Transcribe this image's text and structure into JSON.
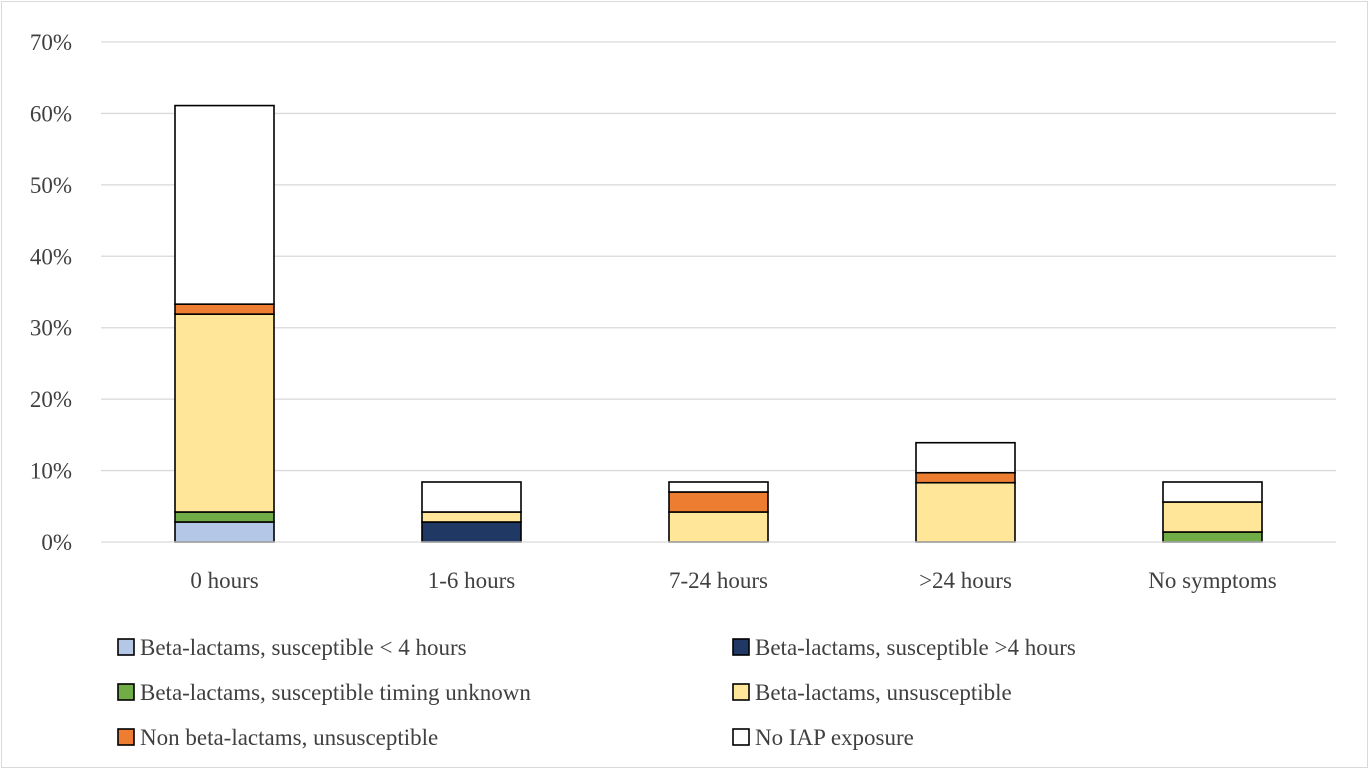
{
  "chart_data": {
    "type": "bar",
    "stacked": true,
    "title": "",
    "xlabel": "",
    "ylabel": "",
    "categories": [
      "0 hours",
      "1-6 hours",
      "7-24 hours",
      ">24 hours",
      "No symptoms"
    ],
    "ylim": [
      0,
      70
    ],
    "yticks": [
      0,
      10,
      20,
      30,
      40,
      50,
      60,
      70
    ],
    "ytick_labels": [
      "0%",
      "10%",
      "20%",
      "30%",
      "40%",
      "50%",
      "60%",
      "70%"
    ],
    "grid": true,
    "legend_position": "bottom",
    "series": [
      {
        "name": "Beta-lactams, susceptible < 4 hours",
        "color": "#b4c7e7",
        "values": [
          2.8,
          0,
          0,
          0,
          0
        ]
      },
      {
        "name": "Beta-lactams, susceptible >4 hours",
        "color": "#203864",
        "values": [
          0,
          2.8,
          0,
          0,
          0
        ]
      },
      {
        "name": "Beta-lactams, susceptible timing unknown",
        "color": "#70ad47",
        "values": [
          1.4,
          0,
          0,
          0,
          1.4
        ]
      },
      {
        "name": "Beta-lactams, unsusceptible",
        "color": "#ffe699",
        "values": [
          27.7,
          1.4,
          4.2,
          8.3,
          4.2
        ]
      },
      {
        "name": "Non beta-lactams, unsusceptible",
        "color": "#ed7d31",
        "values": [
          1.4,
          0,
          2.8,
          1.4,
          0
        ]
      },
      {
        "name": "No IAP exposure",
        "color": "#ffffff",
        "values": [
          27.8,
          4.2,
          1.4,
          4.2,
          2.8
        ]
      }
    ]
  }
}
